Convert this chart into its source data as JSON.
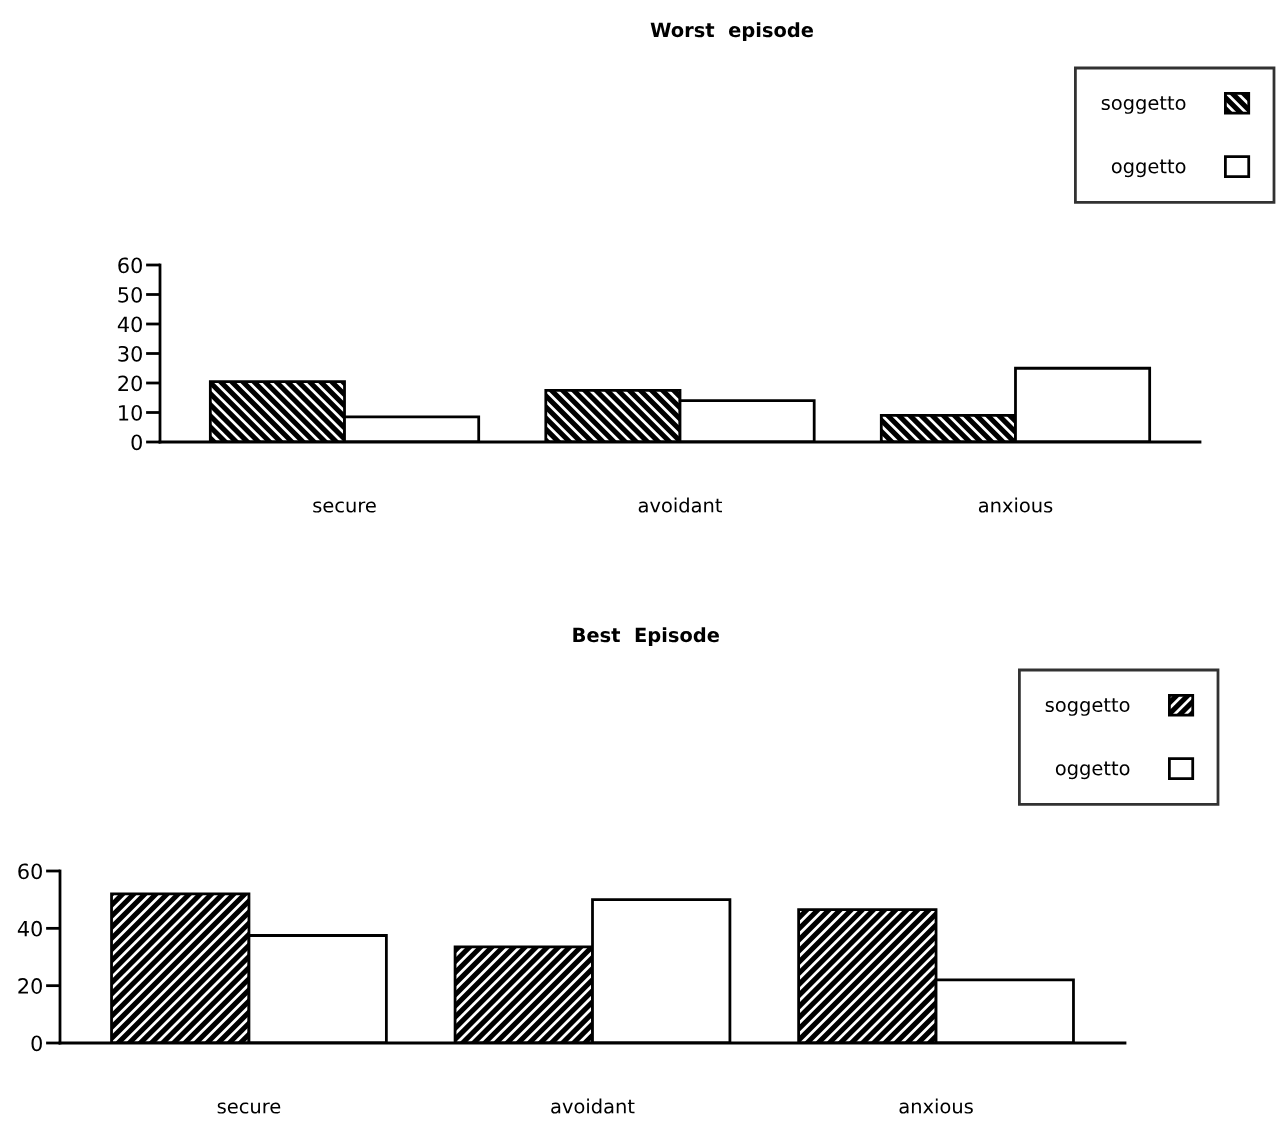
{
  "chart_data": [
    {
      "type": "bar",
      "title": "Worst  episode",
      "categories": [
        "secure",
        "avoidant",
        "anxious"
      ],
      "series": [
        {
          "name": "soggetto",
          "color": "#000000",
          "values": [
            20.5,
            17.5,
            9
          ]
        },
        {
          "name": "oggetto",
          "color": "#ffffff",
          "values": [
            8.5,
            14,
            25
          ]
        }
      ],
      "ylim": [
        0,
        60
      ],
      "yticks": [
        0,
        10,
        20,
        30,
        40,
        50,
        60
      ],
      "grid": false,
      "legend": "top right"
    },
    {
      "type": "bar",
      "title": "Best  Episode",
      "categories": [
        "secure",
        "avoidant",
        "anxious"
      ],
      "series": [
        {
          "name": "soggetto",
          "color": "#000000",
          "values": [
            52,
            33.5,
            46.5
          ]
        },
        {
          "name": "oggetto",
          "color": "#ffffff",
          "values": [
            37.5,
            50,
            22
          ]
        }
      ],
      "ylim": [
        0,
        60
      ],
      "yticks": [
        0,
        20,
        40,
        60
      ],
      "grid": false,
      "legend": "top right"
    }
  ]
}
